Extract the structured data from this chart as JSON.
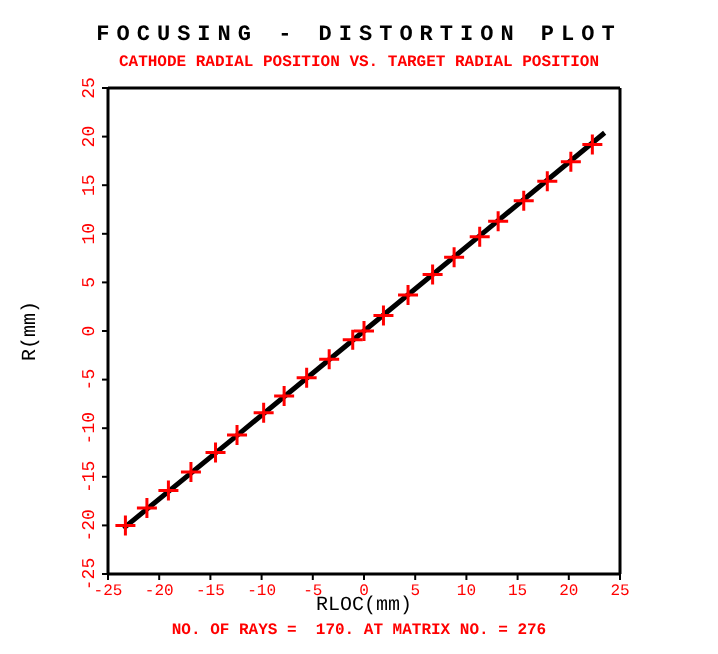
{
  "chart_data": {
    "type": "scatter",
    "title": "FOCUSING - DISTORTION PLOT",
    "subtitle": "CATHODE RADIAL POSITION VS. TARGET RADIAL POSITION",
    "xlabel": "RLOC(mm)",
    "ylabel": "R(mm)",
    "annotations": [
      "NO. OF RAYS =  170. AT MATRIX NO. = 276"
    ],
    "xlim": [
      -25,
      25
    ],
    "ylim": [
      -25,
      25
    ],
    "xticks": [
      -25,
      -20,
      -15,
      -10,
      -5,
      0,
      5,
      10,
      15,
      20,
      25
    ],
    "yticks": [
      -25,
      -20,
      -15,
      -10,
      -5,
      0,
      5,
      10,
      15,
      20,
      25
    ],
    "legend": false,
    "grid": false,
    "series": [
      {
        "type": "line",
        "color": "#000000",
        "marker": "none",
        "x": [
          -23.5,
          -12,
          0,
          12,
          23.5
        ],
        "values": [
          -20.3,
          -10.4,
          0,
          10.4,
          20.4
        ]
      },
      {
        "color": "#ff0000",
        "marker": "cross",
        "x": [
          -23.3,
          -21.2,
          -19.1,
          -16.9,
          -14.5,
          -12.4,
          -9.8,
          -7.8,
          -5.6,
          -3.4,
          -1.1,
          0,
          1.9,
          4.3,
          6.7,
          8.8,
          11.3,
          13.1,
          15.6,
          17.9,
          20.2,
          22.3
        ],
        "values": [
          -20.0,
          -18.2,
          -16.4,
          -14.5,
          -12.5,
          -10.7,
          -8.4,
          -6.7,
          -4.8,
          -2.9,
          -0.9,
          0,
          1.6,
          3.7,
          5.8,
          7.6,
          9.7,
          11.3,
          13.4,
          15.4,
          17.4,
          19.2
        ]
      }
    ]
  }
}
